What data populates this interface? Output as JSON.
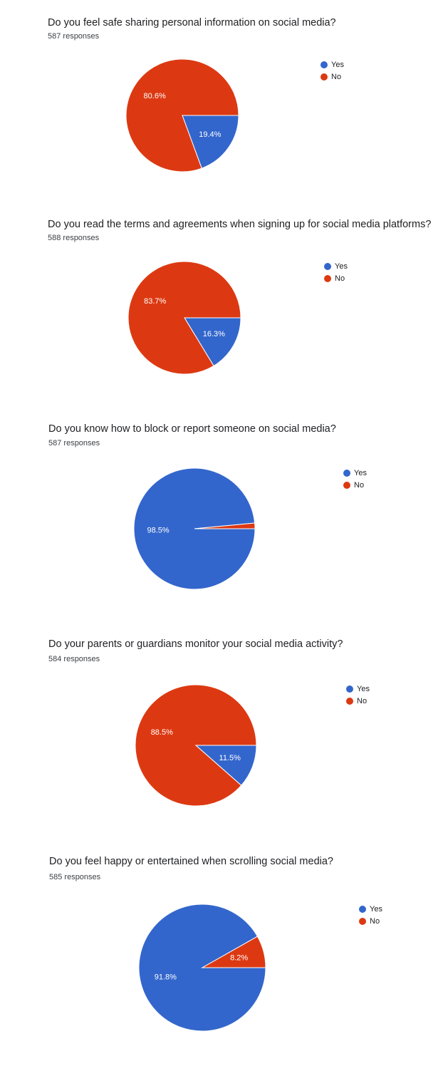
{
  "colors": {
    "yes": "#3366cc",
    "no": "#dc3912"
  },
  "chart_data": [
    {
      "type": "pie",
      "title": "Do you feel safe sharing personal information on social media?",
      "responses": "587 responses",
      "legend": [
        "Yes",
        "No"
      ],
      "legend_position": "top-right",
      "slices": [
        {
          "name": "Yes",
          "value": 19.4,
          "label": "19.4%"
        },
        {
          "name": "No",
          "value": 80.6,
          "label": "80.6%"
        }
      ]
    },
    {
      "type": "pie",
      "title": "Do you read the terms and agreements when signing up for social media platforms?",
      "responses": "588 responses",
      "legend": [
        "Yes",
        "No"
      ],
      "legend_position": "top-right",
      "slices": [
        {
          "name": "Yes",
          "value": 16.3,
          "label": "16.3%"
        },
        {
          "name": "No",
          "value": 83.7,
          "label": "83.7%"
        }
      ]
    },
    {
      "type": "pie",
      "title": "Do you know how to block or report someone on social media?",
      "responses": "587 responses",
      "legend": [
        "Yes",
        "No"
      ],
      "legend_position": "top-right",
      "slices": [
        {
          "name": "Yes",
          "value": 98.5,
          "label": "98.5%"
        },
        {
          "name": "No",
          "value": 1.5,
          "label": ""
        }
      ]
    },
    {
      "type": "pie",
      "title": "Do your parents or guardians monitor your social media activity?",
      "responses": "584 responses",
      "legend": [
        "Yes",
        "No"
      ],
      "legend_position": "top-right",
      "slices": [
        {
          "name": "Yes",
          "value": 11.5,
          "label": "11.5%"
        },
        {
          "name": "No",
          "value": 88.5,
          "label": "88.5%"
        }
      ]
    },
    {
      "type": "pie",
      "title": "Do you feel happy or entertained when scrolling social media?",
      "responses": "585 responses",
      "legend": [
        "Yes",
        "No"
      ],
      "legend_position": "top-right",
      "slices": [
        {
          "name": "Yes",
          "value": 91.8,
          "label": "91.8%"
        },
        {
          "name": "No",
          "value": 8.2,
          "label": "8.2%"
        }
      ]
    }
  ]
}
